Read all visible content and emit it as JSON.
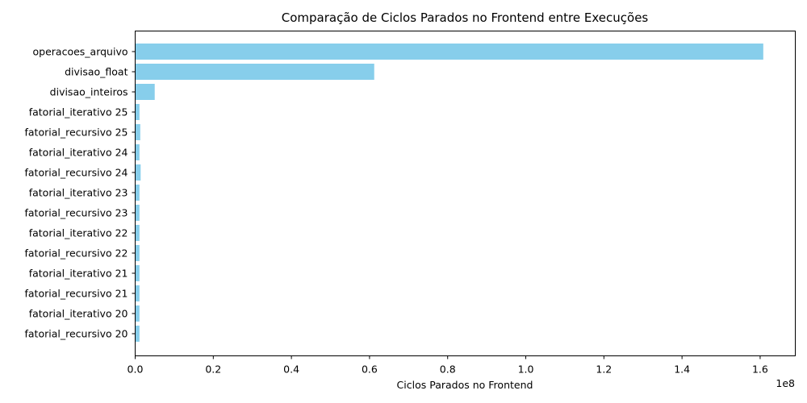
{
  "chart_data": {
    "type": "bar",
    "orientation": "horizontal",
    "title": "Comparação de Ciclos Parados no Frontend entre Execuções",
    "xlabel": "Ciclos Parados no Frontend",
    "ylabel": "",
    "x_offset_text": "1e8",
    "xlim": [
      0,
      169000000.0
    ],
    "x_ticks": [
      0,
      20000000.0,
      40000000.0,
      60000000.0,
      80000000.0,
      100000000.0,
      120000000.0,
      140000000.0,
      160000000.0
    ],
    "x_tick_labels": [
      "0.0",
      "0.2",
      "0.4",
      "0.6",
      "0.8",
      "1.0",
      "1.2",
      "1.4",
      "1.6"
    ],
    "bar_color": "#87ceeb",
    "categories": [
      "operacoes_arquivo",
      "divisao_float",
      "divisao_inteiros",
      "fatorial_iterativo 25",
      "fatorial_recursivo 25",
      "fatorial_iterativo 24",
      "fatorial_recursivo 24",
      "fatorial_iterativo 23",
      "fatorial_recursivo 23",
      "fatorial_iterativo 22",
      "fatorial_recursivo 22",
      "fatorial_iterativo 21",
      "fatorial_recursivo 21",
      "fatorial_iterativo 20",
      "fatorial_recursivo 20"
    ],
    "values": [
      160800000,
      61200000,
      5000000,
      1100000,
      1300000,
      1100000,
      1400000,
      1100000,
      1100000,
      1100000,
      1100000,
      1100000,
      1100000,
      1100000,
      1100000
    ]
  }
}
